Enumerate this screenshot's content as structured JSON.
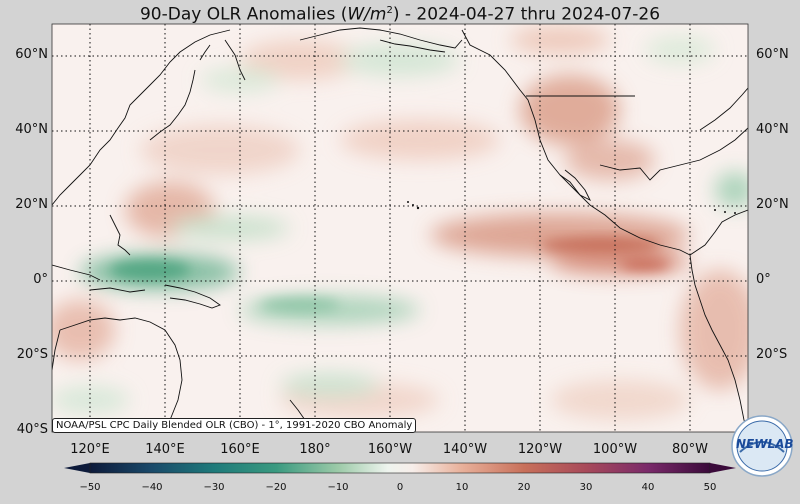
{
  "title": {
    "prefix": "90-Day OLR Anomalies (",
    "unit": "W/m",
    "exponent": "2",
    "suffix": ") - 2024-04-27 thru 2024-07-26"
  },
  "lat_labels": [
    "60°N",
    "40°N",
    "20°N",
    "0°",
    "20°S",
    "40°S"
  ],
  "lon_labels": [
    "120°E",
    "140°E",
    "160°E",
    "180°",
    "160°W",
    "140°W",
    "120°W",
    "100°W",
    "80°W"
  ],
  "credit": "NOAA/PSL CPC Daily Blended OLR (CBO) - 1°, 1991-2020 CBO Anomaly",
  "colorbar": {
    "ticks": [
      "−50",
      "−40",
      "−30",
      "−20",
      "−10",
      "0",
      "10",
      "20",
      "30",
      "40",
      "50"
    ],
    "min": -50,
    "max": 50
  },
  "logo": {
    "text": "NEWLAB"
  },
  "colors": {
    "negative": "#2a8a6a",
    "positive": "#c0604a",
    "land_line": "#111111"
  }
}
